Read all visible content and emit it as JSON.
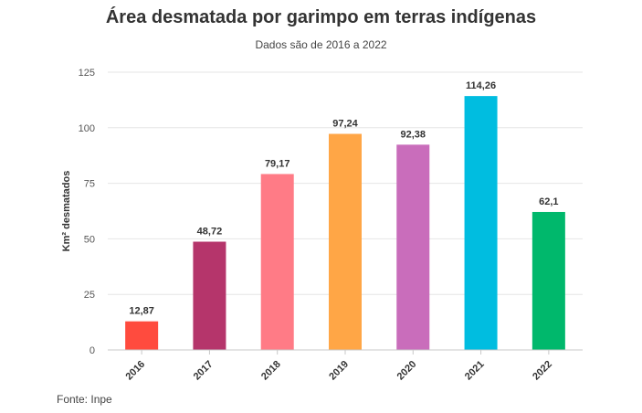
{
  "chart_data": {
    "type": "bar",
    "title": "Área desmatada por garimpo em terras indígenas",
    "subtitle": "Dados são de 2016 a 2022",
    "ylabel": "Km² desmatados",
    "xlabel": "",
    "ylim": [
      0,
      125
    ],
    "yticks": [
      0,
      25,
      50,
      75,
      100,
      125
    ],
    "grid": true,
    "categories": [
      "2016",
      "2017",
      "2018",
      "2019",
      "2020",
      "2021",
      "2022"
    ],
    "values": [
      12.87,
      48.72,
      79.17,
      97.24,
      92.38,
      114.26,
      62.1
    ],
    "data_labels": [
      "12,87",
      "48,72",
      "79,17",
      "97,24",
      "92,38",
      "114,26",
      "62,1"
    ],
    "colors": [
      "#ff4b3e",
      "#b5356b",
      "#ff7b86",
      "#ffa646",
      "#c96dbb",
      "#00bde0",
      "#00b86c"
    ],
    "source": "Fonte: Inpe"
  }
}
